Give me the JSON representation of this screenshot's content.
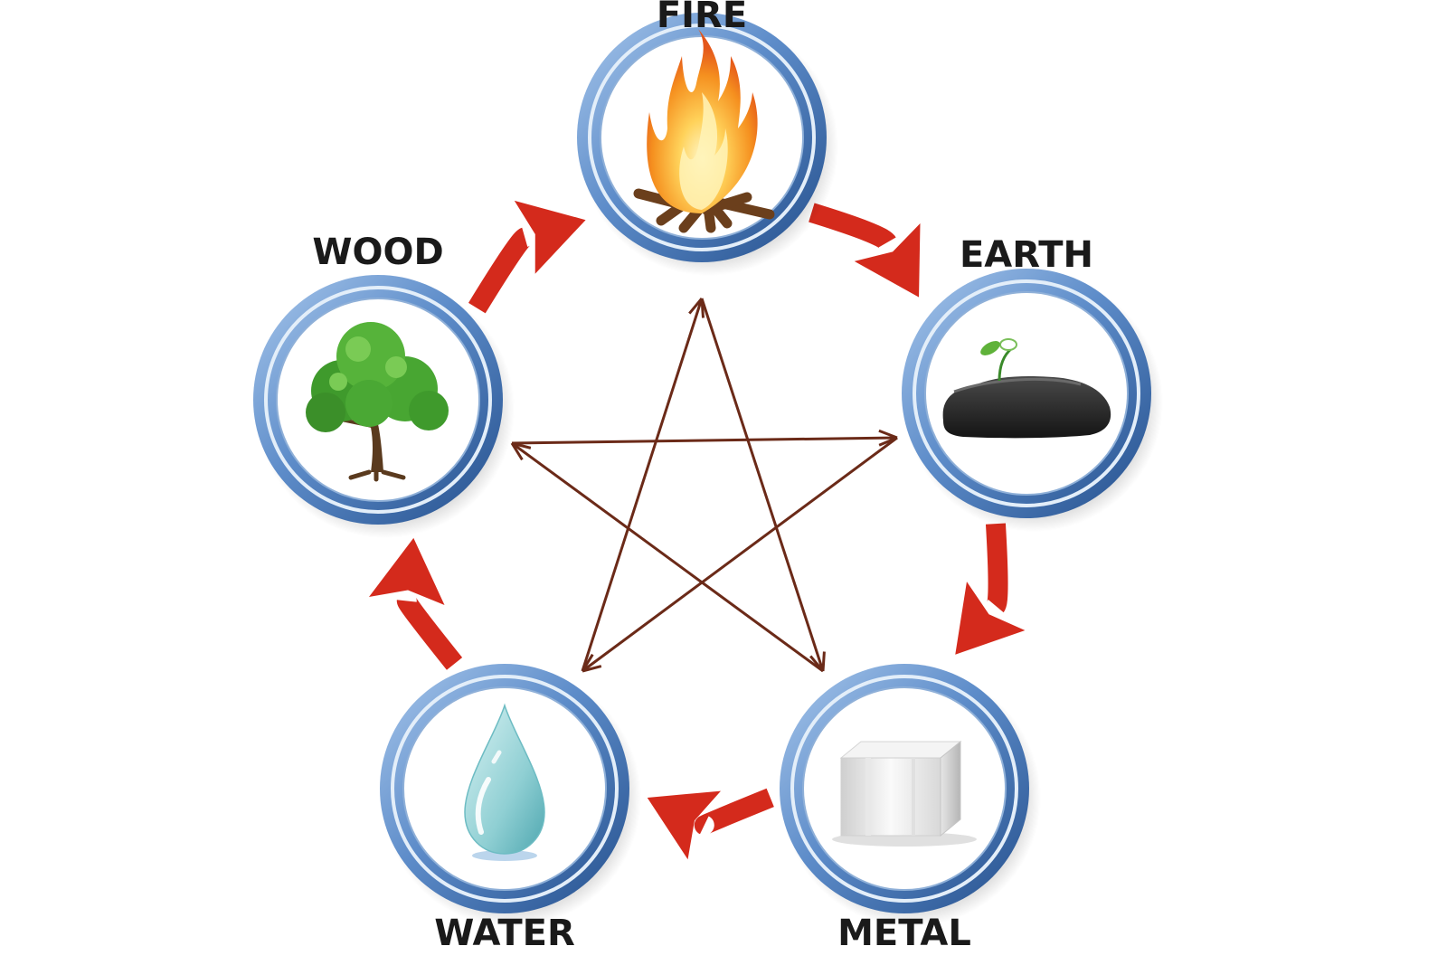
{
  "elements": [
    {
      "id": "fire",
      "label": "FIRE",
      "icon": "campfire-icon"
    },
    {
      "id": "earth",
      "label": "EARTH",
      "icon": "rock-icon"
    },
    {
      "id": "metal",
      "label": "METAL",
      "icon": "metal-cube-icon"
    },
    {
      "id": "water",
      "label": "WATER",
      "icon": "water-drop-icon"
    },
    {
      "id": "wood",
      "label": "WOOD",
      "icon": "tree-icon"
    }
  ],
  "generating_cycle": [
    {
      "from": "fire",
      "to": "earth"
    },
    {
      "from": "earth",
      "to": "metal"
    },
    {
      "from": "metal",
      "to": "water"
    },
    {
      "from": "water",
      "to": "wood"
    },
    {
      "from": "wood",
      "to": "fire"
    }
  ],
  "controlling_cycle": [
    {
      "from": "fire",
      "to": "metal"
    },
    {
      "from": "metal",
      "to": "wood"
    },
    {
      "from": "wood",
      "to": "earth"
    },
    {
      "from": "earth",
      "to": "water"
    },
    {
      "from": "water",
      "to": "fire"
    }
  ],
  "colors": {
    "ring_outer": "#2f5d9a",
    "ring_mid": "#6f9ad2",
    "ring_light": "#c6dcf2",
    "generating_arrow": "#d42a1c",
    "controlling_arrow": "#6b2a18",
    "label": "#1a1a1a"
  }
}
